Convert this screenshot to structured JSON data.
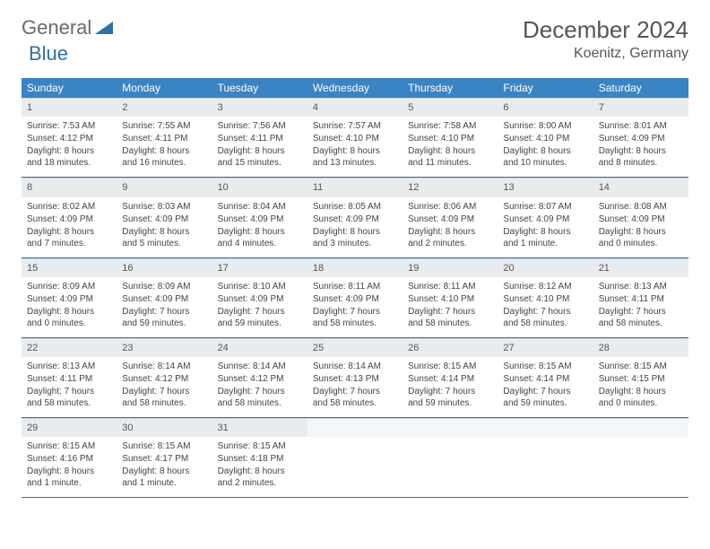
{
  "logo": {
    "general": "General",
    "blue": "Blue"
  },
  "title": "December 2024",
  "location": "Koenitz, Germany",
  "colors": {
    "header_bg": "#3b84c4",
    "header_text": "#ffffff",
    "daynum_bg": "#e9ecef",
    "border": "#2f6fa7",
    "text": "#444444",
    "logo_general": "#6a6a6a",
    "logo_blue": "#2f6fa7"
  },
  "dow": [
    "Sunday",
    "Monday",
    "Tuesday",
    "Wednesday",
    "Thursday",
    "Friday",
    "Saturday"
  ],
  "cells": [
    {
      "n": "1",
      "sr": "Sunrise: 7:53 AM",
      "ss": "Sunset: 4:12 PM",
      "dl": "Daylight: 8 hours and 18 minutes."
    },
    {
      "n": "2",
      "sr": "Sunrise: 7:55 AM",
      "ss": "Sunset: 4:11 PM",
      "dl": "Daylight: 8 hours and 16 minutes."
    },
    {
      "n": "3",
      "sr": "Sunrise: 7:56 AM",
      "ss": "Sunset: 4:11 PM",
      "dl": "Daylight: 8 hours and 15 minutes."
    },
    {
      "n": "4",
      "sr": "Sunrise: 7:57 AM",
      "ss": "Sunset: 4:10 PM",
      "dl": "Daylight: 8 hours and 13 minutes."
    },
    {
      "n": "5",
      "sr": "Sunrise: 7:58 AM",
      "ss": "Sunset: 4:10 PM",
      "dl": "Daylight: 8 hours and 11 minutes."
    },
    {
      "n": "6",
      "sr": "Sunrise: 8:00 AM",
      "ss": "Sunset: 4:10 PM",
      "dl": "Daylight: 8 hours and 10 minutes."
    },
    {
      "n": "7",
      "sr": "Sunrise: 8:01 AM",
      "ss": "Sunset: 4:09 PM",
      "dl": "Daylight: 8 hours and 8 minutes."
    },
    {
      "n": "8",
      "sr": "Sunrise: 8:02 AM",
      "ss": "Sunset: 4:09 PM",
      "dl": "Daylight: 8 hours and 7 minutes."
    },
    {
      "n": "9",
      "sr": "Sunrise: 8:03 AM",
      "ss": "Sunset: 4:09 PM",
      "dl": "Daylight: 8 hours and 5 minutes."
    },
    {
      "n": "10",
      "sr": "Sunrise: 8:04 AM",
      "ss": "Sunset: 4:09 PM",
      "dl": "Daylight: 8 hours and 4 minutes."
    },
    {
      "n": "11",
      "sr": "Sunrise: 8:05 AM",
      "ss": "Sunset: 4:09 PM",
      "dl": "Daylight: 8 hours and 3 minutes."
    },
    {
      "n": "12",
      "sr": "Sunrise: 8:06 AM",
      "ss": "Sunset: 4:09 PM",
      "dl": "Daylight: 8 hours and 2 minutes."
    },
    {
      "n": "13",
      "sr": "Sunrise: 8:07 AM",
      "ss": "Sunset: 4:09 PM",
      "dl": "Daylight: 8 hours and 1 minute."
    },
    {
      "n": "14",
      "sr": "Sunrise: 8:08 AM",
      "ss": "Sunset: 4:09 PM",
      "dl": "Daylight: 8 hours and 0 minutes."
    },
    {
      "n": "15",
      "sr": "Sunrise: 8:09 AM",
      "ss": "Sunset: 4:09 PM",
      "dl": "Daylight: 8 hours and 0 minutes."
    },
    {
      "n": "16",
      "sr": "Sunrise: 8:09 AM",
      "ss": "Sunset: 4:09 PM",
      "dl": "Daylight: 7 hours and 59 minutes."
    },
    {
      "n": "17",
      "sr": "Sunrise: 8:10 AM",
      "ss": "Sunset: 4:09 PM",
      "dl": "Daylight: 7 hours and 59 minutes."
    },
    {
      "n": "18",
      "sr": "Sunrise: 8:11 AM",
      "ss": "Sunset: 4:09 PM",
      "dl": "Daylight: 7 hours and 58 minutes."
    },
    {
      "n": "19",
      "sr": "Sunrise: 8:11 AM",
      "ss": "Sunset: 4:10 PM",
      "dl": "Daylight: 7 hours and 58 minutes."
    },
    {
      "n": "20",
      "sr": "Sunrise: 8:12 AM",
      "ss": "Sunset: 4:10 PM",
      "dl": "Daylight: 7 hours and 58 minutes."
    },
    {
      "n": "21",
      "sr": "Sunrise: 8:13 AM",
      "ss": "Sunset: 4:11 PM",
      "dl": "Daylight: 7 hours and 58 minutes."
    },
    {
      "n": "22",
      "sr": "Sunrise: 8:13 AM",
      "ss": "Sunset: 4:11 PM",
      "dl": "Daylight: 7 hours and 58 minutes."
    },
    {
      "n": "23",
      "sr": "Sunrise: 8:14 AM",
      "ss": "Sunset: 4:12 PM",
      "dl": "Daylight: 7 hours and 58 minutes."
    },
    {
      "n": "24",
      "sr": "Sunrise: 8:14 AM",
      "ss": "Sunset: 4:12 PM",
      "dl": "Daylight: 7 hours and 58 minutes."
    },
    {
      "n": "25",
      "sr": "Sunrise: 8:14 AM",
      "ss": "Sunset: 4:13 PM",
      "dl": "Daylight: 7 hours and 58 minutes."
    },
    {
      "n": "26",
      "sr": "Sunrise: 8:15 AM",
      "ss": "Sunset: 4:14 PM",
      "dl": "Daylight: 7 hours and 59 minutes."
    },
    {
      "n": "27",
      "sr": "Sunrise: 8:15 AM",
      "ss": "Sunset: 4:14 PM",
      "dl": "Daylight: 7 hours and 59 minutes."
    },
    {
      "n": "28",
      "sr": "Sunrise: 8:15 AM",
      "ss": "Sunset: 4:15 PM",
      "dl": "Daylight: 8 hours and 0 minutes."
    },
    {
      "n": "29",
      "sr": "Sunrise: 8:15 AM",
      "ss": "Sunset: 4:16 PM",
      "dl": "Daylight: 8 hours and 1 minute."
    },
    {
      "n": "30",
      "sr": "Sunrise: 8:15 AM",
      "ss": "Sunset: 4:17 PM",
      "dl": "Daylight: 8 hours and 1 minute."
    },
    {
      "n": "31",
      "sr": "Sunrise: 8:15 AM",
      "ss": "Sunset: 4:18 PM",
      "dl": "Daylight: 8 hours and 2 minutes."
    },
    {
      "empty": true
    },
    {
      "empty": true
    },
    {
      "empty": true
    },
    {
      "empty": true
    }
  ]
}
